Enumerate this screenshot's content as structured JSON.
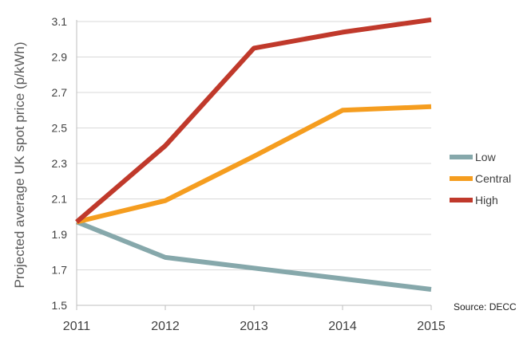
{
  "chart_data": {
    "type": "line",
    "title": "",
    "xlabel": "",
    "ylabel": "Projected average UK spot price (p/kWh)",
    "x": [
      "2011",
      "2012",
      "2013",
      "2014",
      "2015"
    ],
    "ylim": [
      1.5,
      3.1
    ],
    "yticks": [
      "1.5",
      "1.7",
      "1.9",
      "2.1",
      "2.3",
      "2.5",
      "2.7",
      "2.9",
      "3.1"
    ],
    "grid": true,
    "legend_position": "right",
    "series": [
      {
        "name": "Low",
        "color": "#86a8ab",
        "values": [
          1.97,
          1.77,
          1.71,
          1.65,
          1.59
        ]
      },
      {
        "name": "Central",
        "color": "#f59d1f",
        "values": [
          1.97,
          2.09,
          2.34,
          2.6,
          2.62
        ]
      },
      {
        "name": "High",
        "color": "#c0392b",
        "values": [
          1.97,
          2.4,
          2.95,
          3.04,
          3.11
        ]
      }
    ],
    "source": "Source: DECC"
  }
}
